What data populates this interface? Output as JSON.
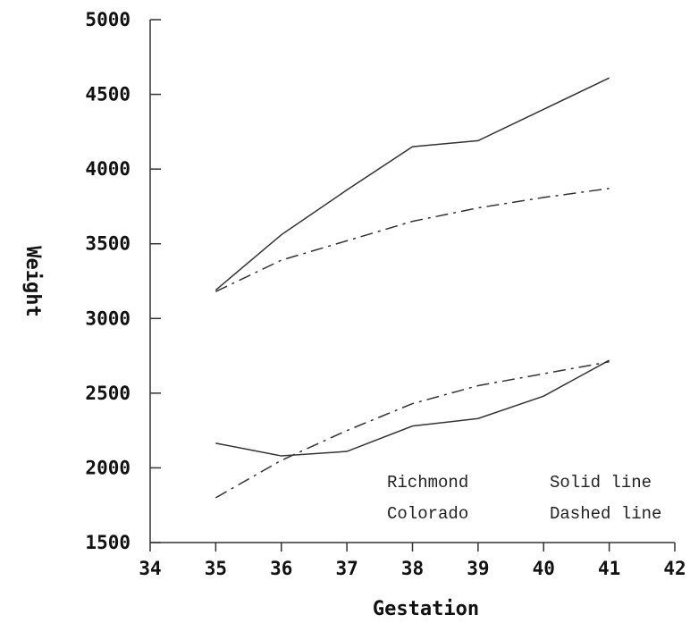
{
  "chart_data": {
    "type": "line",
    "title": "",
    "xlabel": "Gestation",
    "ylabel": "Weight",
    "xlim": [
      34,
      42
    ],
    "ylim": [
      1500,
      5000
    ],
    "xticks": [
      "34",
      "35",
      "36",
      "37",
      "38",
      "39",
      "40",
      "41",
      "42"
    ],
    "yticks": [
      "1500",
      "2000",
      "2500",
      "3000",
      "3500",
      "4000",
      "4500",
      "5000"
    ],
    "x": [
      35,
      36,
      37,
      38,
      39,
      40,
      41
    ],
    "series": [
      {
        "style": "solid",
        "values": [
          3190,
          3560,
          3860,
          4150,
          4190,
          4400,
          4610
        ]
      },
      {
        "style": "dashed",
        "values": [
          3180,
          3390,
          3520,
          3650,
          3740,
          3810,
          3870
        ]
      },
      {
        "style": "solid",
        "values": [
          2165,
          2080,
          2110,
          2280,
          2330,
          2480,
          2720
        ]
      },
      {
        "style": "dashed",
        "values": [
          1800,
          2050,
          2250,
          2430,
          2550,
          2630,
          2710
        ]
      }
    ],
    "legend": {
      "placement": "bottom-right",
      "rows": [
        {
          "name": "Richmond",
          "style_label": "Solid line"
        },
        {
          "name": "Colorado",
          "style_label": "Dashed line"
        }
      ]
    },
    "grid": false
  }
}
